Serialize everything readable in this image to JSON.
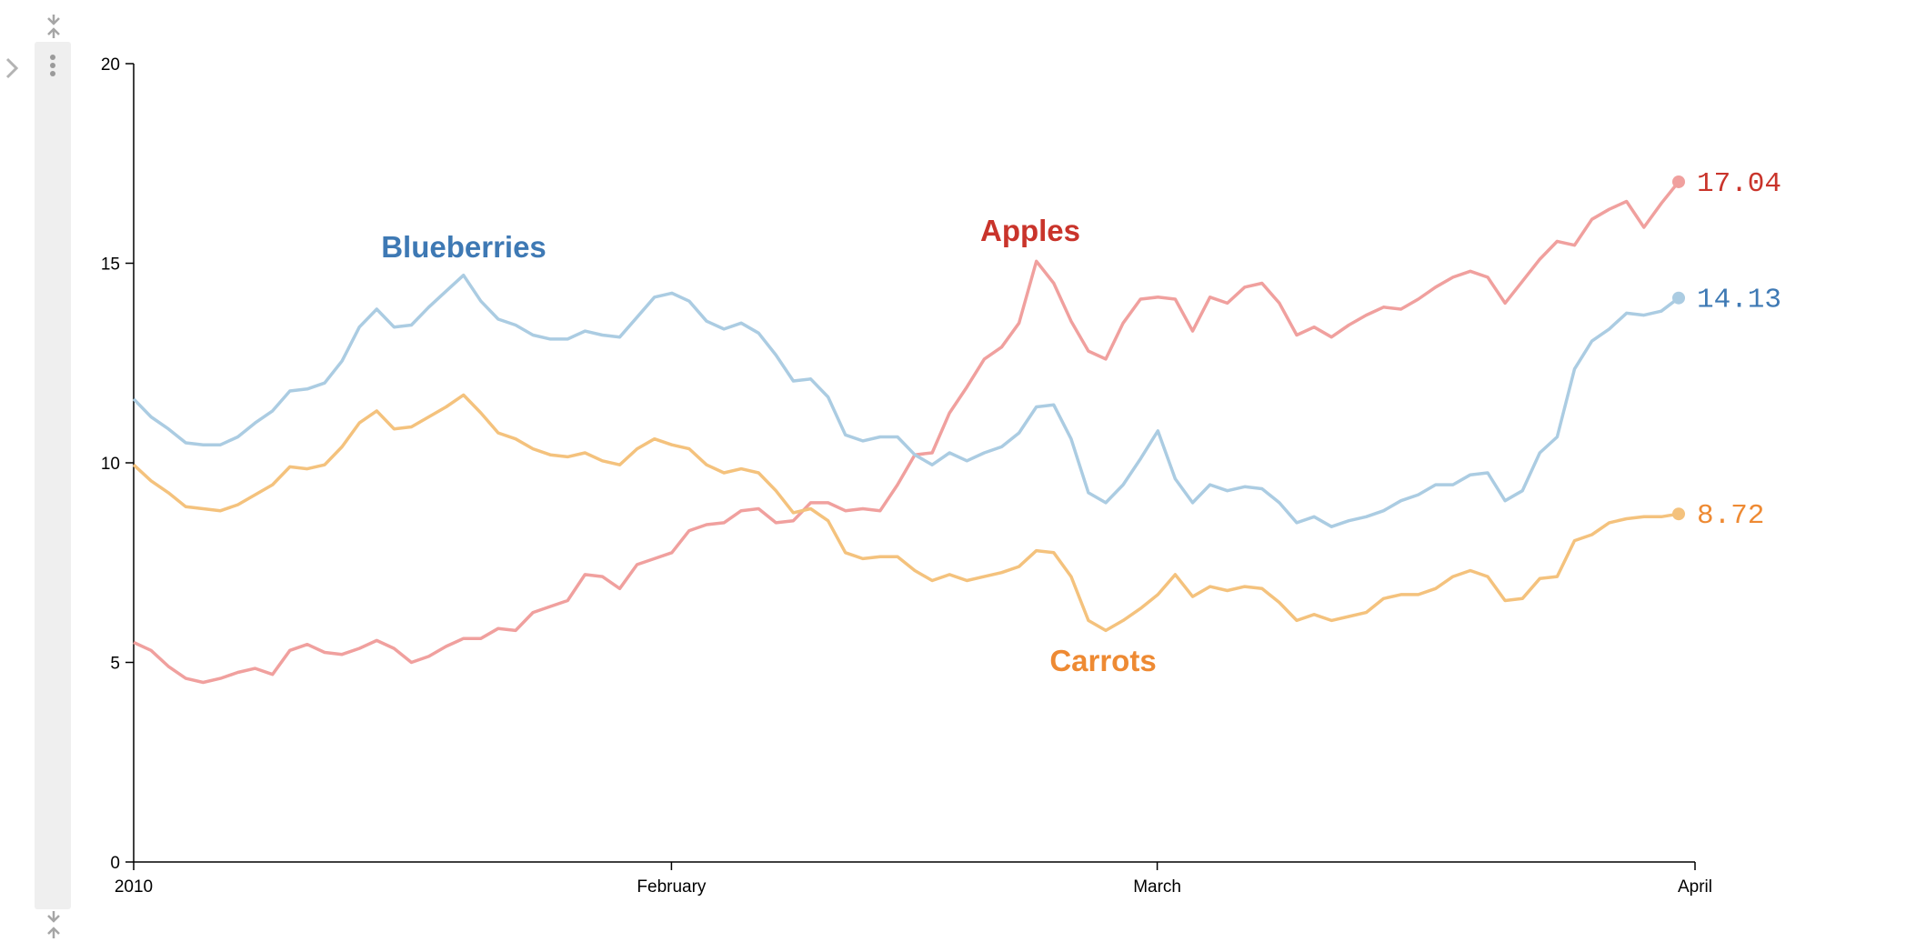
{
  "notebook": {
    "icons": {
      "collapse_top": "collapse-arrows-icon",
      "gutter_menu": "vertical-ellipsis-icon",
      "expander": "chevron-right-icon",
      "collapse_bottom": "collapse-arrows-icon"
    },
    "gutter_color": "#efefef"
  },
  "chart_data": {
    "type": "line",
    "title": "",
    "xlabel": "",
    "ylabel": "",
    "x_ticks": [
      "2010",
      "February",
      "March",
      "April"
    ],
    "x_tick_dates": [
      "2010-01-01",
      "2010-02-01",
      "2010-03-01",
      "2010-04-01"
    ],
    "x_start": "2010-01-01",
    "x_end": "2010-04-01",
    "ylim": [
      0,
      20
    ],
    "y_ticks": [
      0,
      5,
      10,
      15,
      20
    ],
    "grid": false,
    "legend": "inline labels",
    "series": [
      {
        "name": "Apples",
        "label_color": "#c9342b",
        "line_color": "#f0a09e",
        "end_label": "17.04",
        "values": [
          5.5,
          5.3,
          4.9,
          4.6,
          4.5,
          4.6,
          4.75,
          4.85,
          4.7,
          5.3,
          5.45,
          5.25,
          5.2,
          5.35,
          5.55,
          5.35,
          5.0,
          5.15,
          5.4,
          5.6,
          5.6,
          5.85,
          5.8,
          6.25,
          6.4,
          6.55,
          7.2,
          7.15,
          6.85,
          7.45,
          7.6,
          7.75,
          8.3,
          8.45,
          8.5,
          8.8,
          8.85,
          8.5,
          8.55,
          9.0,
          9.0,
          8.8,
          8.85,
          8.8,
          9.45,
          10.2,
          10.25,
          11.25,
          11.9,
          12.6,
          12.9,
          13.5,
          15.05,
          14.5,
          13.55,
          12.8,
          12.6,
          13.5,
          14.1,
          14.15,
          14.1,
          13.3,
          14.15,
          14.0,
          14.4,
          14.5,
          14.0,
          13.2,
          13.4,
          13.15,
          13.45,
          13.7,
          13.9,
          13.85,
          14.1,
          14.4,
          14.65,
          14.8,
          14.65,
          14.0,
          14.55,
          15.1,
          15.55,
          15.45,
          16.1,
          16.35,
          16.55,
          15.9,
          16.5,
          17.04
        ]
      },
      {
        "name": "Blueberries",
        "label_color": "#3e79b4",
        "line_color": "#abcce2",
        "end_label": "14.13",
        "values": [
          11.6,
          11.15,
          10.85,
          10.5,
          10.45,
          10.45,
          10.65,
          11.0,
          11.3,
          11.8,
          11.85,
          12.0,
          12.55,
          13.4,
          13.85,
          13.4,
          13.45,
          13.9,
          14.3,
          14.7,
          14.05,
          13.6,
          13.45,
          13.2,
          13.1,
          13.1,
          13.3,
          13.2,
          13.15,
          13.65,
          14.15,
          14.25,
          14.05,
          13.55,
          13.35,
          13.5,
          13.25,
          12.7,
          12.05,
          12.1,
          11.65,
          10.7,
          10.55,
          10.65,
          10.65,
          10.2,
          9.95,
          10.25,
          10.05,
          10.25,
          10.4,
          10.75,
          11.4,
          11.45,
          10.6,
          9.25,
          9.0,
          9.45,
          10.1,
          10.8,
          9.6,
          9.0,
          9.45,
          9.3,
          9.4,
          9.35,
          9.0,
          8.5,
          8.65,
          8.4,
          8.55,
          8.65,
          8.8,
          9.05,
          9.2,
          9.45,
          9.45,
          9.7,
          9.75,
          9.05,
          9.3,
          10.25,
          10.65,
          12.35,
          13.05,
          13.35,
          13.75,
          13.7,
          13.8,
          14.13
        ]
      },
      {
        "name": "Carrots",
        "label_color": "#ee8a33",
        "line_color": "#f4c27d",
        "end_label": "8.72",
        "values": [
          9.95,
          9.55,
          9.25,
          8.9,
          8.85,
          8.8,
          8.95,
          9.2,
          9.45,
          9.9,
          9.85,
          9.95,
          10.4,
          11.0,
          11.3,
          10.85,
          10.9,
          11.15,
          11.4,
          11.7,
          11.25,
          10.75,
          10.6,
          10.35,
          10.2,
          10.15,
          10.25,
          10.05,
          9.95,
          10.35,
          10.6,
          10.45,
          10.35,
          9.95,
          9.75,
          9.85,
          9.75,
          9.3,
          8.75,
          8.85,
          8.55,
          7.75,
          7.6,
          7.65,
          7.65,
          7.3,
          7.05,
          7.2,
          7.05,
          7.15,
          7.25,
          7.4,
          7.8,
          7.75,
          7.15,
          6.05,
          5.8,
          6.05,
          6.35,
          6.7,
          7.2,
          6.65,
          6.9,
          6.8,
          6.9,
          6.85,
          6.5,
          6.05,
          6.2,
          6.05,
          6.15,
          6.25,
          6.6,
          6.7,
          6.7,
          6.85,
          7.15,
          7.3,
          7.15,
          6.55,
          6.6,
          7.1,
          7.15,
          8.05,
          8.2,
          8.5,
          8.6,
          8.65,
          8.65,
          8.72
        ]
      }
    ]
  }
}
